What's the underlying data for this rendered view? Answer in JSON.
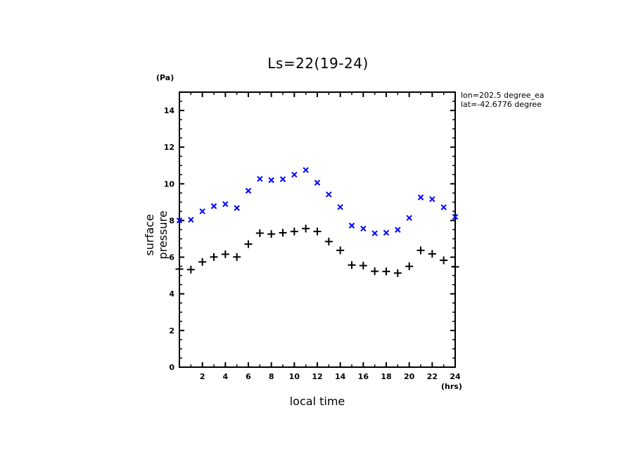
{
  "chart_data": {
    "type": "scatter",
    "title": "Ls=22(19-24)",
    "xlabel": "local time",
    "ylabel": "surface pressure",
    "x_unit": "(hrs)",
    "y_unit": "(Pa)",
    "xlim": [
      0,
      24
    ],
    "ylim": [
      0,
      15
    ],
    "x_ticks": [
      2,
      4,
      6,
      8,
      10,
      12,
      14,
      16,
      18,
      20,
      22,
      24
    ],
    "y_ticks": [
      0,
      2,
      4,
      6,
      8,
      10,
      12,
      14
    ],
    "grid": false,
    "annotations": [
      "lon=202.5 degree_ea",
      "lat=-42.6776 degree"
    ],
    "x": [
      0,
      1,
      2,
      3,
      4,
      5,
      6,
      7,
      8,
      9,
      10,
      11,
      12,
      13,
      14,
      15,
      16,
      17,
      18,
      19,
      20,
      21,
      22,
      23,
      24
    ],
    "series": [
      {
        "name": "series-x",
        "marker": "x",
        "color": "#0000ff",
        "values": [
          8.0,
          8.04,
          8.5,
          8.78,
          8.89,
          8.68,
          9.62,
          10.27,
          10.2,
          10.25,
          10.5,
          10.75,
          10.06,
          9.42,
          8.73,
          7.72,
          7.56,
          7.3,
          7.33,
          7.49,
          8.14,
          9.26,
          9.16,
          8.72,
          8.2
        ]
      },
      {
        "name": "series-plus",
        "marker": "+",
        "color": "#000000",
        "values": [
          5.35,
          5.32,
          5.74,
          6.01,
          6.16,
          6.01,
          6.71,
          7.31,
          7.26,
          7.33,
          7.4,
          7.56,
          7.4,
          6.85,
          6.37,
          5.57,
          5.54,
          5.23,
          5.22,
          5.13,
          5.5,
          6.37,
          6.18,
          5.83,
          5.47
        ]
      }
    ]
  }
}
